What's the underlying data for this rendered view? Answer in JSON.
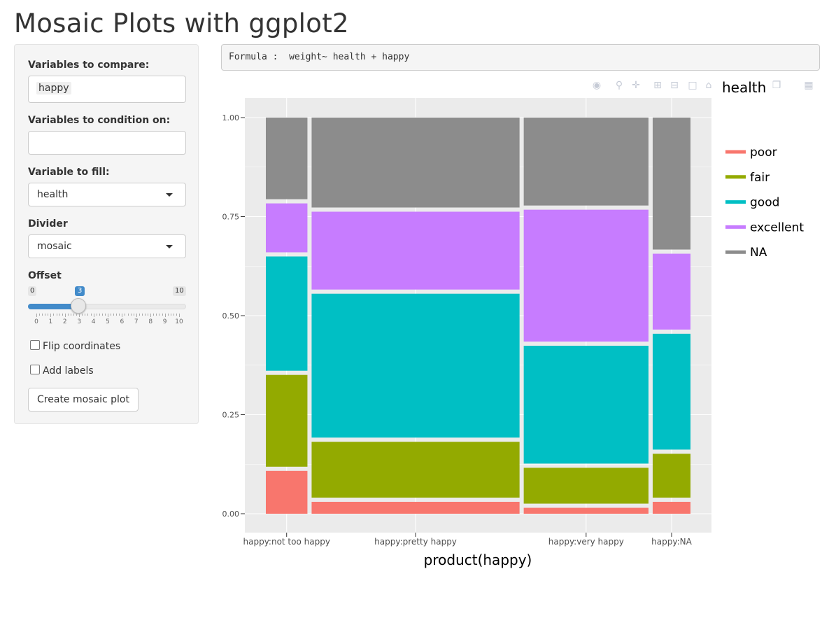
{
  "page": {
    "title": "Mosaic Plots with ggplot2"
  },
  "sidebar": {
    "compare_label": "Variables to compare:",
    "compare_chip": "happy",
    "condition_label": "Variables to condition on:",
    "condition_value": "",
    "fill_label": "Variable to fill:",
    "fill_value": "health",
    "divider_label": "Divider",
    "divider_value": "mosaic",
    "offset_label": "Offset",
    "offset": {
      "min": "0",
      "max": "10",
      "value": "3",
      "ticks": [
        "0",
        "1",
        "2",
        "3",
        "4",
        "5",
        "6",
        "7",
        "8",
        "9",
        "10"
      ]
    },
    "flip_label": "Flip coordinates",
    "labels_label": "Add labels",
    "create_button": "Create mosaic plot"
  },
  "formula": "Formula :  weight~ health + happy",
  "toolbar": {
    "icons": [
      "camera-icon",
      "zoom-icon",
      "pan-icon",
      "zoom-in-icon",
      "zoom-out-icon",
      "autoscale-icon",
      "home-icon",
      "spike-icon",
      "hover-icon",
      "plotly-logo-icon"
    ]
  },
  "colors": {
    "poor": "#F8766D",
    "fair": "#93AA00",
    "good": "#00BFC4",
    "excellent": "#C77CFF",
    "NA": "#8C8C8C",
    "panel": "#EBEBEB",
    "accent": "#428bca"
  },
  "chart_data": {
    "type": "mosaic",
    "xlabel": "product(happy)",
    "ylabel": "",
    "yticks": [
      "0.00",
      "0.25",
      "0.50",
      "0.75",
      "1.00"
    ],
    "ylim": [
      0,
      1
    ],
    "legend_title": "health",
    "legend": [
      "poor",
      "fair",
      "good",
      "excellent",
      "NA"
    ],
    "legend_placement": "right",
    "columns": [
      {
        "label": "happy:not too happy",
        "width": 0.11,
        "segments": [
          0.11,
          0.235,
          0.29,
          0.13,
          0.205
        ]
      },
      {
        "label": "happy:pretty happy",
        "width": 0.55,
        "segments": [
          0.035,
          0.15,
          0.37,
          0.205,
          0.23
        ]
      },
      {
        "label": "happy:very happy",
        "width": 0.33,
        "segments": [
          0.02,
          0.1,
          0.305,
          0.34,
          0.225
        ]
      },
      {
        "label": "happy:NA",
        "width": 0.1,
        "segments": [
          0.035,
          0.12,
          0.3,
          0.2,
          0.335
        ]
      }
    ]
  }
}
